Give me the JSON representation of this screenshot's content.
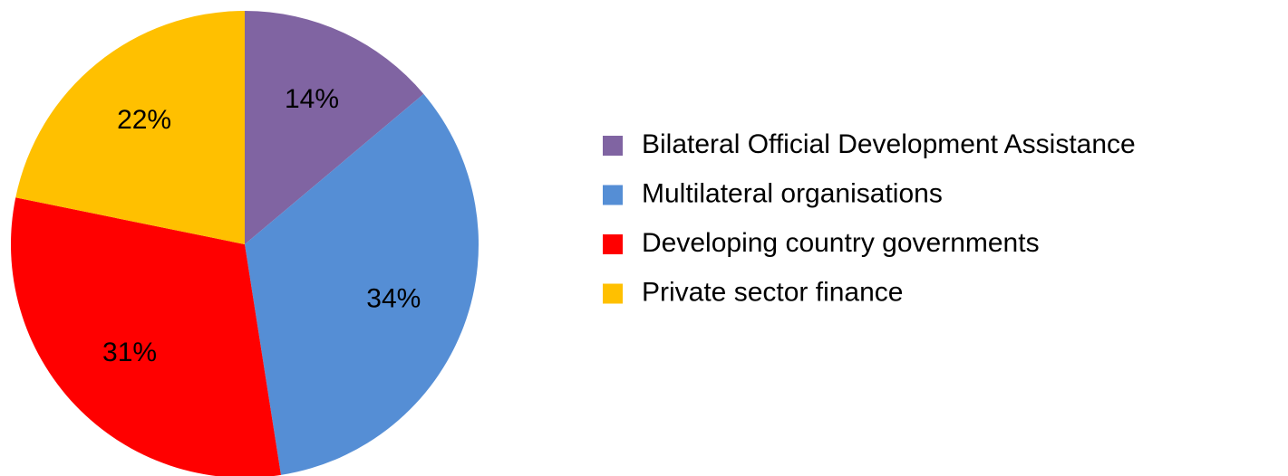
{
  "chart_data": {
    "type": "pie",
    "categories": [
      "Bilateral Official Development Assistance",
      "Multilateral organisations",
      "Developing country governments",
      "Private sector finance"
    ],
    "values": [
      14,
      34,
      31,
      22
    ],
    "value_labels": [
      "14%",
      "34%",
      "31%",
      "22%"
    ],
    "colors": [
      "#8064a2",
      "#558ed5",
      "#ff0000",
      "#ffc000"
    ],
    "legend": "right"
  }
}
